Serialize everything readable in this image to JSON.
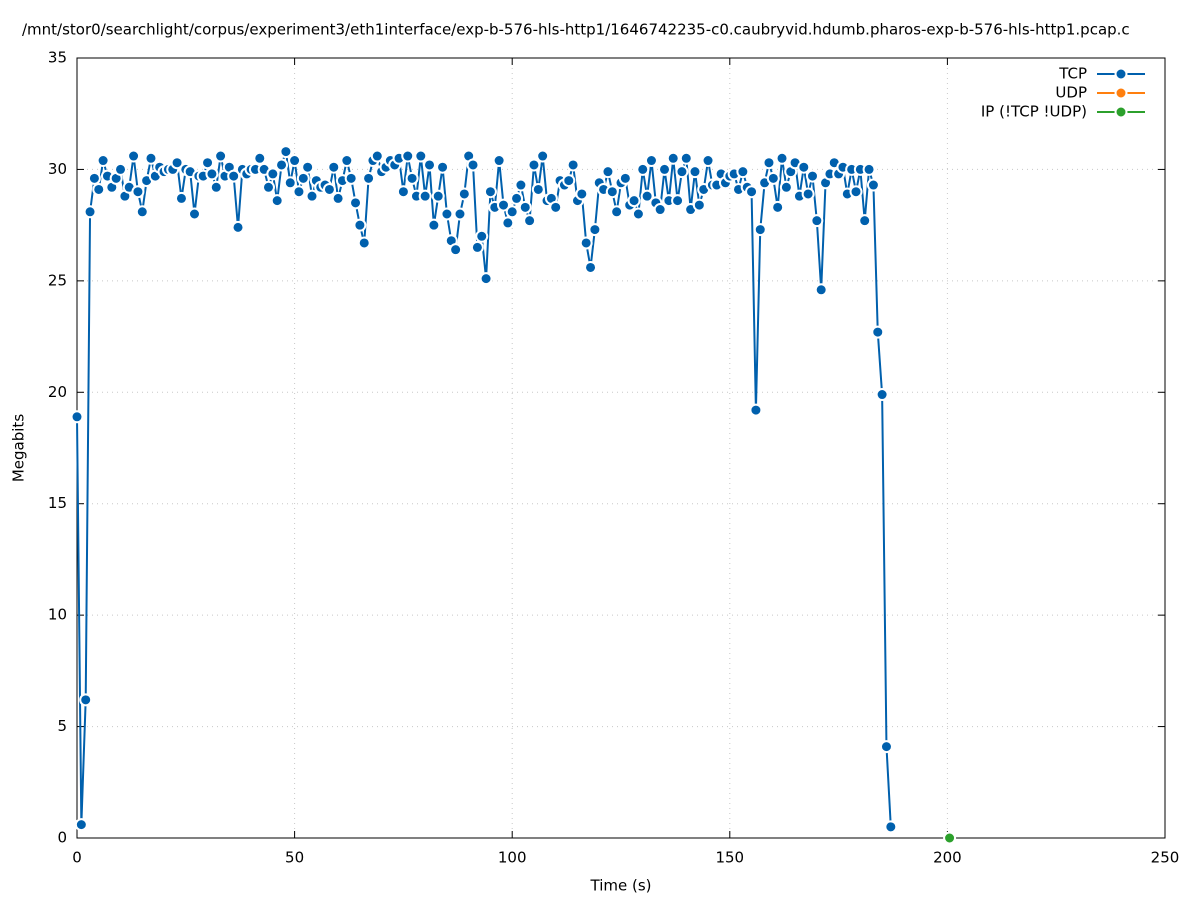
{
  "chart_data": {
    "type": "line",
    "title": "/mnt/stor0/searchlight/corpus/experiment3/eth1interface/exp-b-576-hls-http1/1646742235-c0.caubryvid.hdumb.pharos-exp-b-576-hls-http1.pcap.c",
    "x_label": "Time (s)",
    "y_label": "Megabits",
    "xlim": [
      0,
      250
    ],
    "xticks": [
      0,
      50,
      100,
      150,
      200,
      250
    ],
    "ylim": [
      0,
      35
    ],
    "yticks": [
      0,
      5,
      10,
      15,
      20,
      25,
      30,
      35
    ],
    "grid": true,
    "legend": "top-right",
    "series": [
      {
        "name": "TCP",
        "color": "#0060ad",
        "x": [
          0,
          1,
          2,
          3,
          4,
          5,
          6,
          7,
          8,
          9,
          10,
          11,
          12,
          13,
          14,
          15,
          16,
          17,
          18,
          19,
          20,
          21,
          22,
          23,
          24,
          25,
          26,
          27,
          28,
          29,
          30,
          31,
          32,
          33,
          34,
          35,
          36,
          37,
          38,
          39,
          40,
          41,
          42,
          43,
          44,
          45,
          46,
          47,
          48,
          49,
          50,
          51,
          52,
          53,
          54,
          55,
          56,
          57,
          58,
          59,
          60,
          61,
          62,
          63,
          64,
          65,
          66,
          67,
          68,
          69,
          70,
          71,
          72,
          73,
          74,
          75,
          76,
          77,
          78,
          79,
          80,
          81,
          82,
          83,
          84,
          85,
          86,
          87,
          88,
          89,
          90,
          91,
          92,
          93,
          94,
          95,
          96,
          97,
          98,
          99,
          100,
          101,
          102,
          103,
          104,
          105,
          106,
          107,
          108,
          109,
          110,
          111,
          112,
          113,
          114,
          115,
          116,
          117,
          118,
          119,
          120,
          121,
          122,
          123,
          124,
          125,
          126,
          127,
          128,
          129,
          130,
          131,
          132,
          133,
          134,
          135,
          136,
          137,
          138,
          139,
          140,
          141,
          142,
          143,
          144,
          145,
          146,
          147,
          148,
          149,
          150,
          151,
          152,
          153,
          154,
          155,
          156,
          157,
          158,
          159,
          160,
          161,
          162,
          163,
          164,
          165,
          166,
          167,
          168,
          169,
          170,
          171,
          172,
          173,
          174,
          175,
          176,
          177,
          178,
          179,
          180,
          181,
          182,
          183,
          184,
          185,
          186,
          187
        ],
        "values": [
          18.9,
          0.6,
          6.2,
          28.1,
          29.6,
          29.1,
          30.4,
          29.7,
          29.2,
          29.6,
          30.0,
          28.8,
          29.2,
          30.6,
          29.0,
          28.1,
          29.5,
          30.5,
          29.7,
          30.1,
          29.9,
          30.0,
          30.0,
          30.3,
          28.7,
          30.0,
          29.9,
          28.0,
          29.7,
          29.7,
          30.3,
          29.8,
          29.2,
          30.6,
          29.7,
          30.1,
          29.7,
          27.4,
          30.0,
          29.8,
          30.0,
          30.0,
          30.5,
          30.0,
          29.2,
          29.8,
          28.6,
          30.2,
          30.8,
          29.4,
          30.4,
          29.0,
          29.6,
          30.1,
          28.8,
          29.5,
          29.2,
          29.3,
          29.1,
          30.1,
          28.7,
          29.5,
          30.4,
          29.6,
          28.5,
          27.5,
          26.7,
          29.6,
          30.4,
          30.6,
          29.9,
          30.1,
          30.4,
          30.2,
          30.5,
          29.0,
          30.6,
          29.6,
          28.8,
          30.6,
          28.8,
          30.2,
          27.5,
          28.8,
          30.1,
          28.0,
          26.8,
          26.4,
          28.0,
          28.9,
          30.6,
          30.2,
          26.5,
          27.0,
          25.1,
          29.0,
          28.3,
          30.4,
          28.4,
          27.6,
          28.1,
          28.7,
          29.3,
          28.3,
          27.7,
          30.2,
          29.1,
          30.6,
          28.6,
          28.7,
          28.3,
          29.5,
          29.3,
          29.5,
          30.2,
          28.6,
          28.9,
          26.7,
          25.6,
          27.3,
          29.4,
          29.1,
          29.9,
          29.0,
          28.1,
          29.4,
          29.6,
          28.4,
          28.6,
          28.0,
          30.0,
          28.8,
          30.4,
          28.5,
          28.2,
          30.0,
          28.6,
          30.5,
          28.6,
          29.9,
          30.5,
          28.2,
          29.9,
          28.4,
          29.1,
          30.4,
          29.3,
          29.3,
          29.8,
          29.4,
          29.7,
          29.8,
          29.1,
          29.9,
          29.2,
          29.0,
          19.2,
          27.3,
          29.4,
          30.3,
          29.6,
          28.3,
          30.5,
          29.2,
          29.9,
          30.3,
          28.8,
          30.1,
          28.9,
          29.7,
          27.7,
          24.6,
          29.4,
          29.8,
          30.3,
          29.8,
          30.1,
          28.9,
          30.0,
          29.0,
          30.0,
          27.7,
          30.0,
          29.3,
          22.7,
          19.9,
          4.1,
          0.5
        ]
      },
      {
        "name": "UDP",
        "color": "#ff7f0e",
        "x": [],
        "values": []
      },
      {
        "name": "IP (!TCP  !UDP)",
        "color": "#2ca02c",
        "x": [
          200.5
        ],
        "values": [
          0
        ]
      }
    ]
  }
}
